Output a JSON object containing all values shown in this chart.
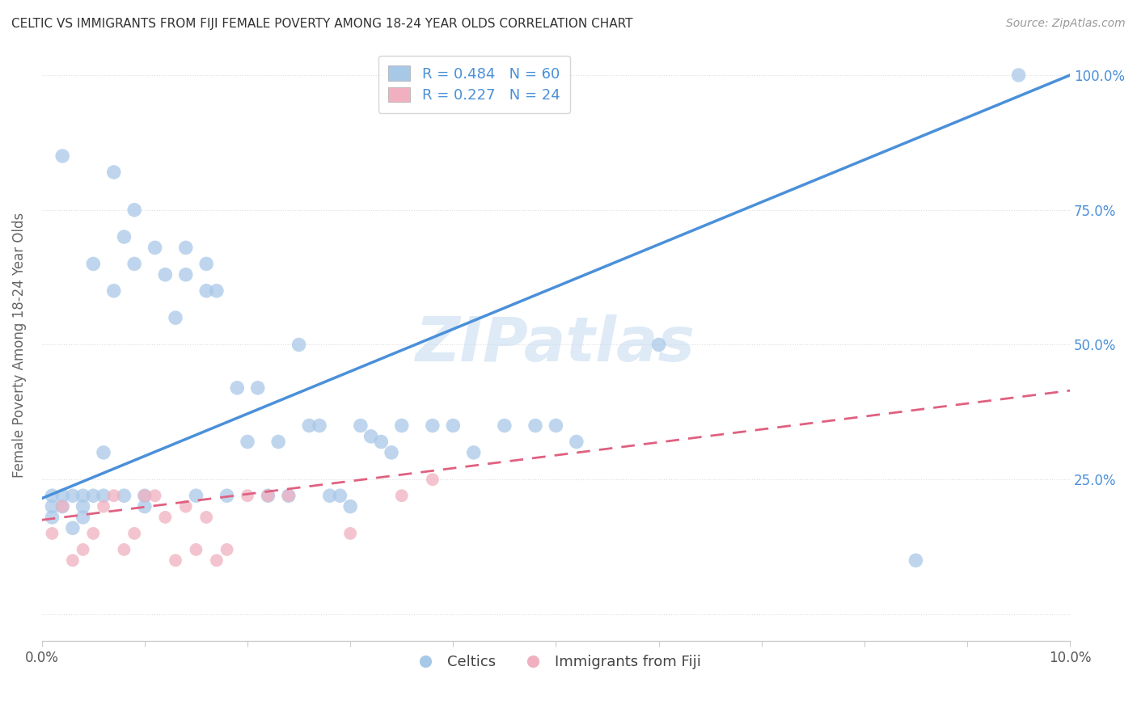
{
  "title": "CELTIC VS IMMIGRANTS FROM FIJI FEMALE POVERTY AMONG 18-24 YEAR OLDS CORRELATION CHART",
  "source": "Source: ZipAtlas.com",
  "ylabel": "Female Poverty Among 18-24 Year Olds",
  "xlabel": "",
  "xlim": [
    0.0,
    0.1
  ],
  "ylim": [
    -0.05,
    1.05
  ],
  "ytick_positions": [
    0.0,
    0.25,
    0.5,
    0.75,
    1.0
  ],
  "ytick_labels": [
    "",
    "25.0%",
    "50.0%",
    "75.0%",
    "100.0%"
  ],
  "blue_color": "#a8c8e8",
  "pink_color": "#f0b0c0",
  "blue_line_color": "#4a90d9",
  "pink_line_color": "#e06080",
  "legend_blue_label": "R = 0.484   N = 60",
  "legend_pink_label": "R = 0.227   N = 24",
  "celtics_label": "Celtics",
  "fiji_label": "Immigrants from Fiji",
  "watermark": "ZIPatlas",
  "background_color": "#ffffff",
  "blue_scatter": {
    "x": [
      0.001,
      0.001,
      0.001,
      0.002,
      0.002,
      0.002,
      0.003,
      0.003,
      0.004,
      0.004,
      0.004,
      0.005,
      0.005,
      0.006,
      0.006,
      0.007,
      0.007,
      0.008,
      0.008,
      0.009,
      0.009,
      0.01,
      0.01,
      0.011,
      0.012,
      0.013,
      0.014,
      0.014,
      0.015,
      0.016,
      0.016,
      0.017,
      0.018,
      0.019,
      0.02,
      0.021,
      0.022,
      0.023,
      0.024,
      0.025,
      0.026,
      0.027,
      0.028,
      0.029,
      0.03,
      0.031,
      0.032,
      0.033,
      0.034,
      0.035,
      0.038,
      0.04,
      0.042,
      0.045,
      0.048,
      0.05,
      0.052,
      0.06,
      0.085,
      0.095
    ],
    "y": [
      0.22,
      0.2,
      0.18,
      0.85,
      0.22,
      0.2,
      0.22,
      0.16,
      0.22,
      0.2,
      0.18,
      0.65,
      0.22,
      0.3,
      0.22,
      0.82,
      0.6,
      0.7,
      0.22,
      0.75,
      0.65,
      0.22,
      0.2,
      0.68,
      0.63,
      0.55,
      0.68,
      0.63,
      0.22,
      0.65,
      0.6,
      0.6,
      0.22,
      0.42,
      0.32,
      0.42,
      0.22,
      0.32,
      0.22,
      0.5,
      0.35,
      0.35,
      0.22,
      0.22,
      0.2,
      0.35,
      0.33,
      0.32,
      0.3,
      0.35,
      0.35,
      0.35,
      0.3,
      0.35,
      0.35,
      0.35,
      0.32,
      0.5,
      0.1,
      1.0
    ]
  },
  "pink_scatter": {
    "x": [
      0.001,
      0.002,
      0.003,
      0.004,
      0.005,
      0.006,
      0.007,
      0.008,
      0.009,
      0.01,
      0.011,
      0.012,
      0.013,
      0.014,
      0.015,
      0.016,
      0.017,
      0.018,
      0.02,
      0.022,
      0.024,
      0.03,
      0.035,
      0.038
    ],
    "y": [
      0.15,
      0.2,
      0.1,
      0.12,
      0.15,
      0.2,
      0.22,
      0.12,
      0.15,
      0.22,
      0.22,
      0.18,
      0.1,
      0.2,
      0.12,
      0.18,
      0.1,
      0.12,
      0.22,
      0.22,
      0.22,
      0.15,
      0.22,
      0.25
    ]
  }
}
